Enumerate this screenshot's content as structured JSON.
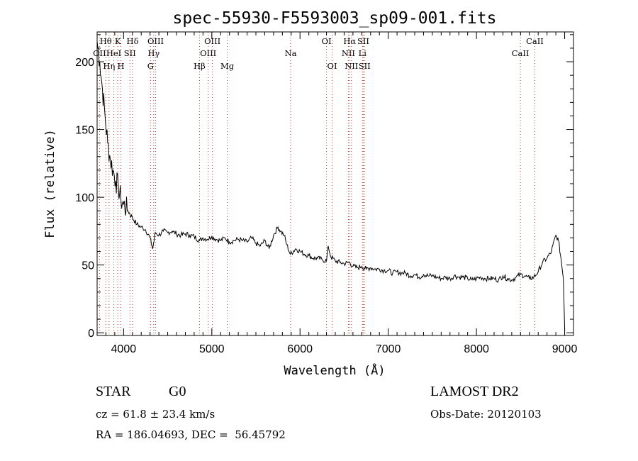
{
  "chart_data": {
    "type": "line",
    "title": "spec-55930-F5593003_sp09-001.fits",
    "xlabel": "Wavelength (Å)",
    "ylabel": "Flux (relative)",
    "xlim": [
      3700,
      9100
    ],
    "ylim": [
      -2,
      222
    ],
    "xticks": [
      4000,
      5000,
      6000,
      7000,
      8000,
      9000
    ],
    "yticks": [
      0,
      50,
      100,
      150,
      200
    ],
    "x": [
      3700,
      3730,
      3760,
      3790,
      3820,
      3850,
      3880,
      3910,
      3940,
      3970,
      4000,
      4050,
      4100,
      4150,
      4200,
      4250,
      4300,
      4330,
      4360,
      4400,
      4450,
      4500,
      4550,
      4600,
      4650,
      4700,
      4750,
      4800,
      4861,
      4900,
      4950,
      5000,
      5050,
      5100,
      5150,
      5200,
      5250,
      5300,
      5350,
      5400,
      5450,
      5500,
      5550,
      5600,
      5650,
      5700,
      5750,
      5780,
      5820,
      5850,
      5890,
      5950,
      6000,
      6050,
      6100,
      6150,
      6200,
      6250,
      6300,
      6320,
      6350,
      6400,
      6450,
      6500,
      6563,
      6600,
      6650,
      6700,
      6750,
      6800,
      6850,
      6900,
      6950,
      7000,
      7050,
      7100,
      7150,
      7200,
      7250,
      7300,
      7350,
      7400,
      7450,
      7500,
      7550,
      7600,
      7650,
      7700,
      7750,
      7800,
      7850,
      7900,
      7950,
      8000,
      8050,
      8100,
      8150,
      8200,
      8250,
      8300,
      8350,
      8400,
      8450,
      8500,
      8550,
      8600,
      8650,
      8700,
      8750,
      8800,
      8850,
      8900,
      8930,
      8960,
      8985,
      9000
    ],
    "y": [
      215,
      200,
      180,
      160,
      140,
      128,
      120,
      112,
      108,
      98,
      95,
      90,
      85,
      80,
      78,
      76,
      70,
      62,
      74,
      72,
      75,
      74,
      75,
      73,
      72,
      73,
      72,
      71,
      68,
      70,
      69,
      71,
      69,
      68,
      70,
      67,
      68,
      69,
      68,
      67,
      70,
      66,
      64,
      68,
      62,
      72,
      78,
      75,
      72,
      65,
      58,
      62,
      60,
      58,
      57,
      55,
      55,
      54,
      53,
      64,
      56,
      53,
      52,
      51,
      52,
      49,
      48,
      49,
      47,
      48,
      47,
      47,
      46,
      46,
      44,
      45,
      44,
      44,
      42,
      43,
      41,
      43,
      42,
      42,
      41,
      40,
      41,
      40,
      42,
      41,
      41,
      40,
      39,
      40,
      41,
      40,
      40,
      40,
      39,
      42,
      40,
      39,
      41,
      43,
      42,
      40,
      41,
      45,
      52,
      55,
      60,
      72,
      68,
      54,
      40,
      2
    ],
    "spectral_lines": [
      {
        "name": "OII",
        "label": "OII",
        "wl": 3727,
        "row": 2
      },
      {
        "name": "Hθ",
        "label": "Hθ",
        "wl": 3798,
        "row": 1
      },
      {
        "name": "Hη",
        "label": "Hη",
        "wl": 3835,
        "row": 3
      },
      {
        "name": "HeI",
        "label": "HeI",
        "wl": 3889,
        "row": 2
      },
      {
        "name": "K",
        "label": "K",
        "wl": 3934,
        "row": 1
      },
      {
        "name": "H",
        "label": "H",
        "wl": 3969,
        "row": 3
      },
      {
        "name": "SII",
        "label": "SII",
        "wl": 4072,
        "row": 2
      },
      {
        "name": "Hδ",
        "label": "Hδ",
        "wl": 4102,
        "row": 1
      },
      {
        "name": "G",
        "label": "G",
        "wl": 4305,
        "row": 3
      },
      {
        "name": "Hγ",
        "label": "Hγ",
        "wl": 4341,
        "row": 2
      },
      {
        "name": "OIII-4363",
        "label": "OIII",
        "wl": 4363,
        "row": 1
      },
      {
        "name": "Hβ",
        "label": "Hβ",
        "wl": 4861,
        "row": 3
      },
      {
        "name": "OIII-4959",
        "label": "OIII",
        "wl": 4959,
        "row": 2
      },
      {
        "name": "OIII-5007",
        "label": "OIII",
        "wl": 5007,
        "row": 1
      },
      {
        "name": "Mg",
        "label": "Mg",
        "wl": 5175,
        "row": 3
      },
      {
        "name": "Na",
        "label": "Na",
        "wl": 5894,
        "row": 2
      },
      {
        "name": "OI-6300",
        "label": "OI",
        "wl": 6300,
        "row": 1
      },
      {
        "name": "OI-6364",
        "label": "OI",
        "wl": 6364,
        "row": 3
      },
      {
        "name": "NII-6548",
        "label": "NII",
        "wl": 6548,
        "row": 2
      },
      {
        "name": "Hα",
        "label": "Hα",
        "wl": 6563,
        "row": 1
      },
      {
        "name": "NII-6583",
        "label": "NII",
        "wl": 6583,
        "row": 3
      },
      {
        "name": "Li",
        "label": "Li",
        "wl": 6708,
        "row": 2
      },
      {
        "name": "SII-6717",
        "label": "SII",
        "wl": 6717,
        "row": 1
      },
      {
        "name": "SII-6731",
        "label": "SII",
        "wl": 6731,
        "row": 3
      },
      {
        "name": "CaII-8498",
        "label": "CaII",
        "wl": 8498,
        "row": 2
      },
      {
        "name": "CaII-8662",
        "label": "CaII",
        "wl": 8662,
        "row": 1
      }
    ],
    "line_color": "#000000",
    "marker_color": "#c0392b"
  },
  "info": {
    "object_class": "STAR",
    "subclass": "G0",
    "survey": "LAMOST DR2",
    "cz": "cz = 61.8 ± 23.4 km/s",
    "obs_date": "Obs-Date: 20120103",
    "coords": "RA = 186.04693, DEC =  56.45792"
  }
}
